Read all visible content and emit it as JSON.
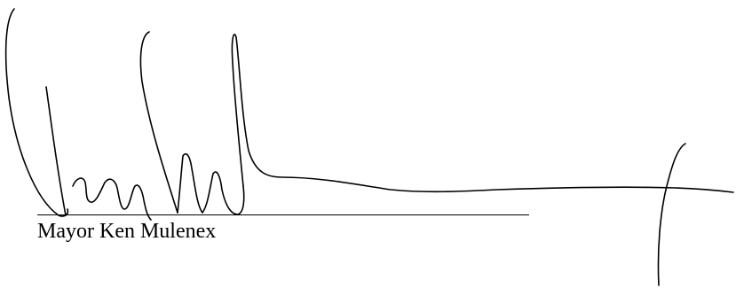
{
  "signature_block": {
    "signer_name": "Mayor Ken Mulenex",
    "signature_graphic": "handwritten-signature",
    "ink_color": "#000000"
  }
}
